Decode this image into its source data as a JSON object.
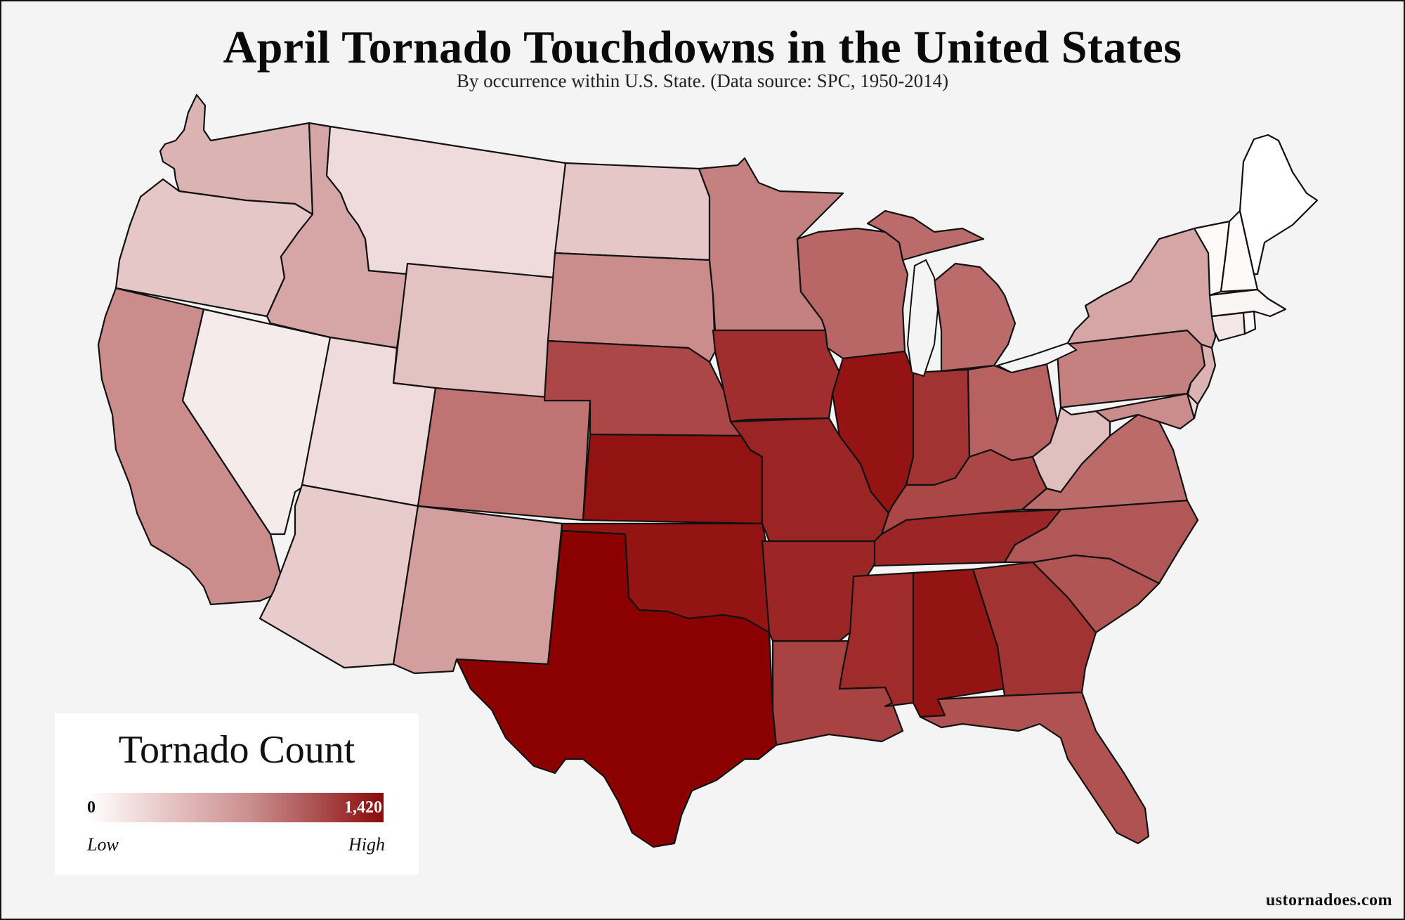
{
  "title": "April Tornado Touchdowns in the United States",
  "subtitle": "By occurrence within U.S. State. (Data source: SPC, 1950-2014)",
  "legend": {
    "title": "Tornado Count",
    "min_label": "0",
    "max_label": "1,420",
    "low_label": "Low",
    "high_label": "High",
    "color_low": "#ffffff",
    "color_high": "#8b0000"
  },
  "source": "ustornadoes.com",
  "state_shading_levels": [
    {
      "state": "Washington",
      "level": 0.3
    },
    {
      "state": "Oregon",
      "level": 0.22
    },
    {
      "state": "California",
      "level": 0.45
    },
    {
      "state": "Nevada",
      "level": 0.08
    },
    {
      "state": "Idaho",
      "level": 0.35
    },
    {
      "state": "Montana",
      "level": 0.14
    },
    {
      "state": "Wyoming",
      "level": 0.24
    },
    {
      "state": "Utah",
      "level": 0.14
    },
    {
      "state": "Arizona",
      "level": 0.2
    },
    {
      "state": "Colorado",
      "level": 0.55
    },
    {
      "state": "New Mexico",
      "level": 0.38
    },
    {
      "state": "North Dakota",
      "level": 0.22
    },
    {
      "state": "South Dakota",
      "level": 0.45
    },
    {
      "state": "Nebraska",
      "level": 0.72
    },
    {
      "state": "Kansas",
      "level": 0.93
    },
    {
      "state": "Oklahoma",
      "level": 0.92
    },
    {
      "state": "Texas",
      "level": 1.0
    },
    {
      "state": "Minnesota",
      "level": 0.5
    },
    {
      "state": "Iowa",
      "level": 0.82
    },
    {
      "state": "Missouri",
      "level": 0.86
    },
    {
      "state": "Arkansas",
      "level": 0.85
    },
    {
      "state": "Louisiana",
      "level": 0.74
    },
    {
      "state": "Wisconsin",
      "level": 0.6
    },
    {
      "state": "Illinois",
      "level": 0.92
    },
    {
      "state": "Michigan",
      "level": 0.58
    },
    {
      "state": "Indiana",
      "level": 0.8
    },
    {
      "state": "Ohio",
      "level": 0.62
    },
    {
      "state": "Kentucky",
      "level": 0.72
    },
    {
      "state": "Tennessee",
      "level": 0.85
    },
    {
      "state": "Mississippi",
      "level": 0.83
    },
    {
      "state": "Alabama",
      "level": 0.92
    },
    {
      "state": "Georgia",
      "level": 0.8
    },
    {
      "state": "Florida",
      "level": 0.68
    },
    {
      "state": "South Carolina",
      "level": 0.67
    },
    {
      "state": "North Carolina",
      "level": 0.66
    },
    {
      "state": "Virginia",
      "level": 0.58
    },
    {
      "state": "West Virginia",
      "level": 0.25
    },
    {
      "state": "Pennsylvania",
      "level": 0.5
    },
    {
      "state": "New York",
      "level": 0.35
    },
    {
      "state": "New Jersey",
      "level": 0.3
    },
    {
      "state": "Maryland",
      "level": 0.45
    },
    {
      "state": "Delaware",
      "level": 0.15
    },
    {
      "state": "Connecticut",
      "level": 0.1
    },
    {
      "state": "Rhode Island",
      "level": 0.03
    },
    {
      "state": "Massachusetts",
      "level": 0.04
    },
    {
      "state": "Vermont",
      "level": 0.02
    },
    {
      "state": "New Hampshire",
      "level": 0.02
    },
    {
      "state": "Maine",
      "level": 0.0
    }
  ]
}
